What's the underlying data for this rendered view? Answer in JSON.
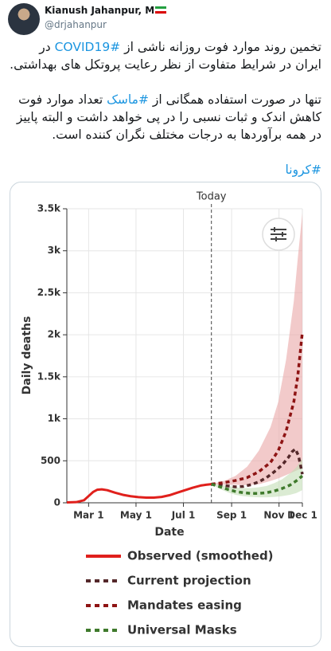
{
  "tweet": {
    "name": "Kianush Jahanpur, MD",
    "handle": "@drjahanpur",
    "paragraphs": [
      [
        {
          "text": "تخمین روند موارد فوت روزانه ناشی از "
        },
        {
          "text": "#COVID19",
          "link": true
        },
        {
          "text": " در ایران در شرایط متفاوت از نظر رعایت پروتکل های بهداشتی."
        }
      ],
      [
        {
          "text": "تنها در صورت استفاده همگانی از "
        },
        {
          "text": "#ماسک",
          "link": true
        },
        {
          "text": " تعداد موارد فوت کاهش اندک و ثبات نسبی را در پی خواهد داشت و البته پاییز در همه برآوردها به درجات مختلف نگران کننده است."
        }
      ]
    ],
    "hashtag": "#کرونا"
  },
  "chart_data": {
    "type": "line",
    "xlabel": "Date",
    "ylabel": "Daily deaths",
    "grid": true,
    "annotations": [
      {
        "text": "Today",
        "x": 219
      }
    ],
    "xlim": [
      33,
      336
    ],
    "xticks": [
      {
        "value": 61,
        "label": "Mar 1"
      },
      {
        "value": 122,
        "label": "May 1"
      },
      {
        "value": 183,
        "label": "Jul 1"
      },
      {
        "value": 245,
        "label": "Sep 1"
      },
      {
        "value": 306,
        "label": "Nov 1"
      },
      {
        "value": 336,
        "label": "Dec 1"
      }
    ],
    "ylim": [
      0,
      3500
    ],
    "yticks": [
      0,
      500,
      {
        "value": 1000,
        "label": "1k"
      },
      {
        "value": 1500,
        "label": "1.5k"
      },
      {
        "value": 2000,
        "label": "2k"
      },
      {
        "value": 2500,
        "label": "2.5k"
      },
      {
        "value": 3000,
        "label": "3k"
      },
      {
        "value": 3500,
        "label": "3.5k"
      }
    ],
    "series": [
      {
        "name": "Observed (smoothed)",
        "color": "#e0201c",
        "style": "solid",
        "x": [
          33,
          45,
          55,
          61,
          67,
          72,
          78,
          85,
          95,
          105,
          115,
          125,
          135,
          145,
          155,
          165,
          175,
          185,
          195,
          205,
          212,
          219
        ],
        "values": [
          5,
          8,
          30,
          80,
          130,
          155,
          160,
          150,
          120,
          95,
          78,
          68,
          62,
          62,
          70,
          90,
          120,
          150,
          180,
          205,
          215,
          222
        ]
      },
      {
        "name": "Current projection",
        "color": "#54282a",
        "style": "dashed",
        "x": [
          219,
          230,
          240,
          250,
          260,
          270,
          280,
          290,
          300,
          310,
          318,
          323,
          327,
          331,
          334,
          336
        ],
        "values": [
          222,
          215,
          200,
          190,
          195,
          215,
          250,
          300,
          370,
          450,
          540,
          610,
          640,
          560,
          430,
          340
        ]
      },
      {
        "name": "Mandates easing",
        "color": "#8e1414",
        "style": "dashed",
        "band_color": "#e9a7a7",
        "x": [
          219,
          235,
          250,
          265,
          280,
          295,
          305,
          315,
          325,
          330,
          336
        ],
        "values": [
          222,
          240,
          265,
          300,
          370,
          480,
          620,
          850,
          1200,
          1500,
          2030
        ],
        "upper": [
          222,
          260,
          320,
          430,
          620,
          900,
          1200,
          1700,
          2400,
          2900,
          3450
        ],
        "lower": [
          222,
          215,
          215,
          210,
          220,
          260,
          290,
          330,
          370,
          390,
          420
        ]
      },
      {
        "name": "Universal Masks",
        "color": "#3f7a2c",
        "style": "dashed",
        "band_color": "#c3ddb5",
        "x": [
          219,
          230,
          240,
          250,
          260,
          270,
          280,
          290,
          300,
          310,
          320,
          328,
          336
        ],
        "values": [
          222,
          190,
          160,
          135,
          120,
          112,
          112,
          120,
          140,
          170,
          210,
          260,
          320
        ],
        "upper": [
          222,
          215,
          200,
          185,
          175,
          175,
          185,
          200,
          235,
          280,
          350,
          420,
          520
        ],
        "lower": [
          222,
          165,
          125,
          95,
          80,
          70,
          65,
          65,
          70,
          80,
          95,
          115,
          150
        ]
      }
    ]
  }
}
